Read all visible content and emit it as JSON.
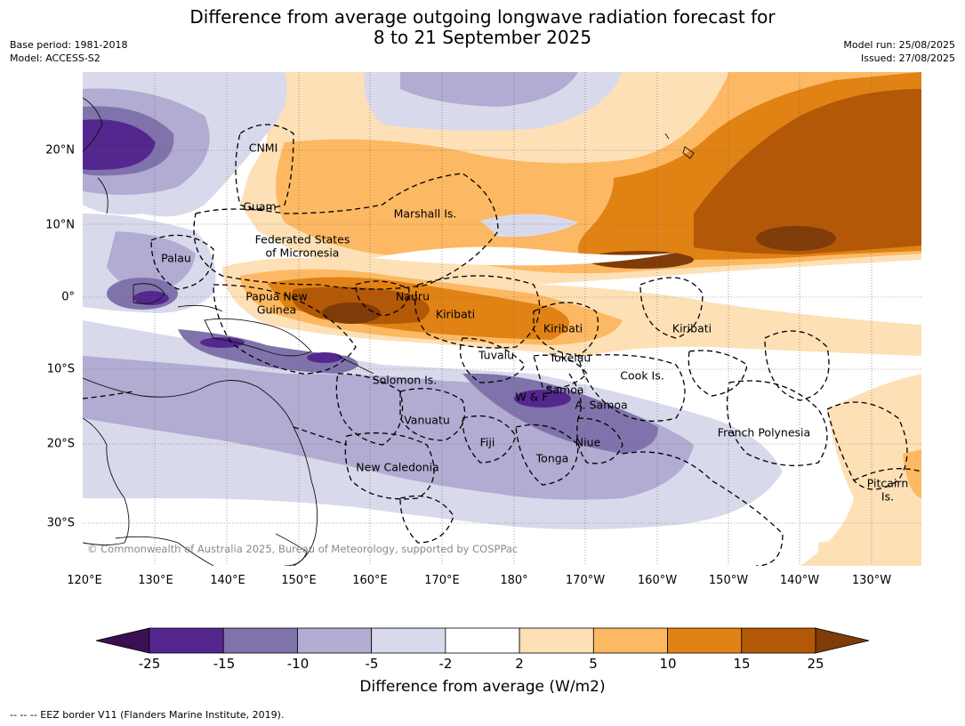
{
  "header": {
    "title_line1": "Difference from average outgoing longwave radiation forecast for",
    "title_line2": "8 to 21 September 2025",
    "base_period": "Base period: 1981-2018",
    "model": "Model: ACCESS-S2",
    "model_run": "Model run: 25/08/2025",
    "issued": "Issued: 27/08/2025"
  },
  "map": {
    "lon_labels": [
      "120°E",
      "130°E",
      "140°E",
      "150°E",
      "160°E",
      "170°E",
      "180°",
      "170°W",
      "160°W",
      "150°W",
      "140°W",
      "130°W"
    ],
    "lat_labels": [
      "20°N",
      "10°N",
      "0°",
      "10°S",
      "20°S",
      "30°S"
    ],
    "places": [
      "CNMI",
      "Guam",
      "Marshall Is.",
      "Federated States",
      "of Micronesia",
      "Palau",
      "Papua New",
      "Guinea",
      "Nauru",
      "Kiribati",
      "Kiribati",
      "Kiribati",
      "Tuvalu",
      "Tokelau",
      "Cook Is.",
      "Solomon Is.",
      "Samoa",
      "W & F",
      "A. Samoa",
      "Vanuatu",
      "Fiji",
      "Niue",
      "French Polynesia",
      "Tonga",
      "New Caledonia",
      "Pitcairn",
      "Is."
    ],
    "copyright": "© Commonwealth of Australia 2025, Bureau of Meteorology, supported by COSPPac"
  },
  "colorbar": {
    "ticks": [
      "-25",
      "-15",
      "-10",
      "-5",
      "-2",
      "2",
      "5",
      "10",
      "15",
      "25"
    ],
    "colors": [
      "#3b0f52",
      "#54278f",
      "#8073ac",
      "#b2abd2",
      "#d8daeb",
      "#ffffff",
      "#fee0b6",
      "#fdb863",
      "#e08214",
      "#b35806",
      "#7f3b08"
    ],
    "label": "Difference from average (W/m2)"
  },
  "footer": {
    "eez_note": "--  --  -- EEZ border V11 (Flanders Marine Institute, 2019)."
  }
}
